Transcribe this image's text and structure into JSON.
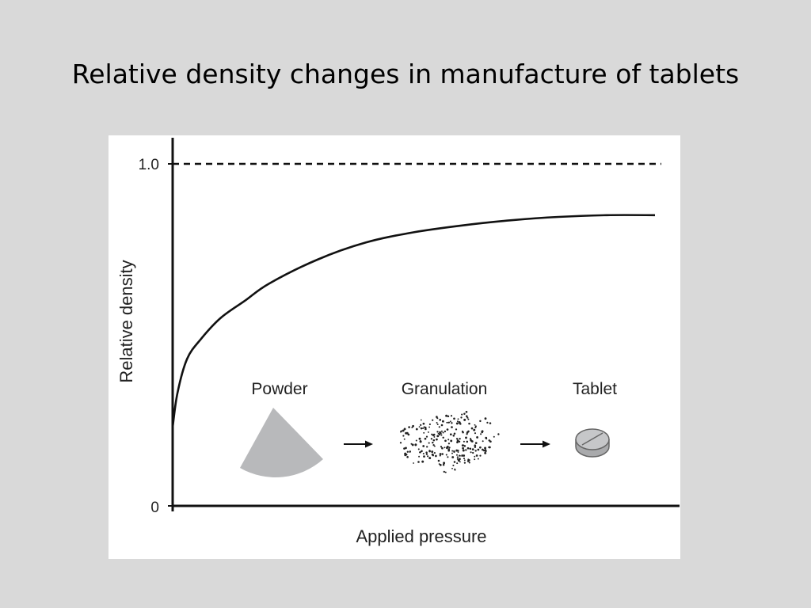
{
  "slide": {
    "title": "Relative density changes in manufacture of tablets"
  },
  "chart_data": {
    "type": "line",
    "xlabel": "Applied pressure",
    "ylabel": "Relative density",
    "ylim": [
      0,
      1.0
    ],
    "xlim": [
      0,
      10
    ],
    "yticks": [
      "0",
      "1.0"
    ],
    "grid": false,
    "legend": "none",
    "reference_line": {
      "y": 1.0,
      "style": "dashed"
    },
    "series": [
      {
        "x": [
          0,
          0.1,
          0.3,
          0.6,
          1.0,
          1.5,
          2.0,
          3.0,
          4.0,
          5.0,
          6.0,
          7.0,
          8.0,
          9.0,
          10.0
        ],
        "values": [
          0.23,
          0.33,
          0.43,
          0.49,
          0.55,
          0.6,
          0.65,
          0.72,
          0.77,
          0.8,
          0.82,
          0.835,
          0.845,
          0.85,
          0.85
        ]
      }
    ],
    "annotations": [
      {
        "label": "Powder",
        "icon": "powder-pile-icon"
      },
      {
        "label": "Granulation",
        "icon": "granulation-icon"
      },
      {
        "label": "Tablet",
        "icon": "tablet-icon"
      }
    ],
    "colors": {
      "curve": "#111111",
      "icon_fill": "#b8b9bb",
      "axis": "#111111"
    }
  }
}
